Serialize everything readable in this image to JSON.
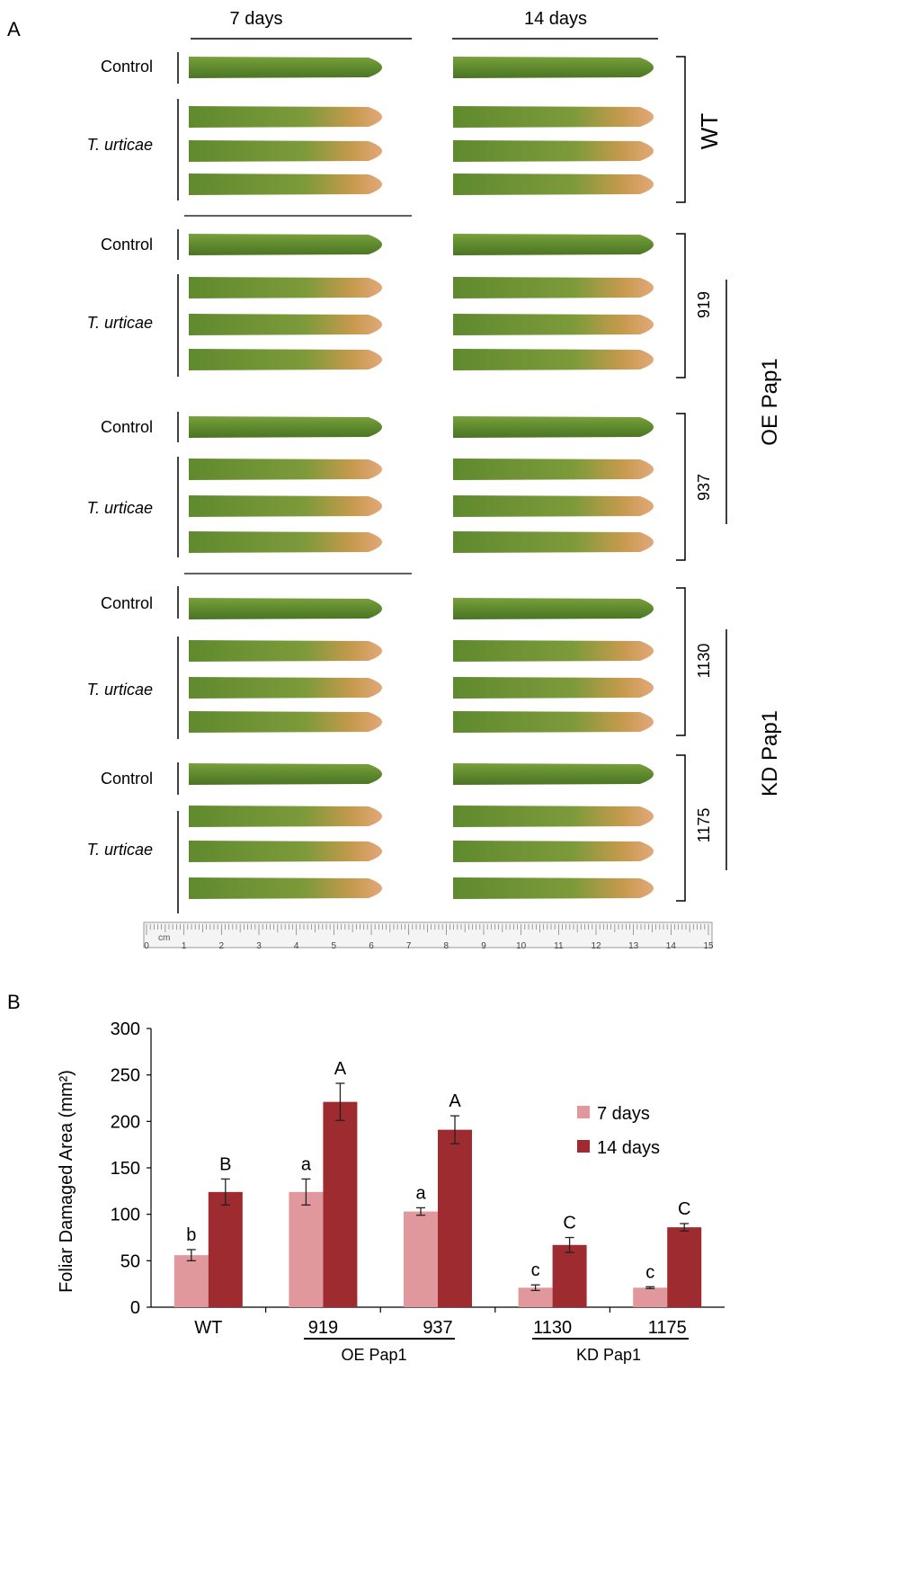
{
  "panel_a": {
    "panel_label": "A",
    "col_headers": [
      "7 days",
      "14 days"
    ],
    "row_labels": {
      "control": "Control",
      "treated": "T. urticae"
    },
    "genotypes": [
      {
        "id": "wt",
        "name": "WT"
      },
      {
        "id": "919",
        "name": "919"
      },
      {
        "id": "937",
        "name": "937"
      },
      {
        "id": "1130",
        "name": "1130"
      },
      {
        "id": "1175",
        "name": "1175"
      }
    ],
    "groups": {
      "oe": "OE Pap1",
      "kd": "KD Pap1"
    },
    "ruler": {
      "unit": "cm",
      "ticks": [
        "0",
        "1",
        "2",
        "3",
        "4",
        "5",
        "6",
        "7",
        "8",
        "9",
        "10",
        "11",
        "12",
        "13",
        "14",
        "15"
      ]
    },
    "colors": {
      "leaf_green": "#5f8a2e",
      "leaf_light": "#8aab4a",
      "damage": "#d79a5a"
    }
  },
  "panel_b": {
    "panel_label": "B",
    "chart_data": {
      "type": "bar",
      "title": "",
      "ylabel": "Foliar Damaged Area (mm²)",
      "xlabel": "",
      "ylim": [
        0,
        300
      ],
      "yticks": [
        "0",
        "50",
        "100",
        "150",
        "200",
        "250",
        "300"
      ],
      "categories": [
        "WT",
        "919",
        "937",
        "1130",
        "1175"
      ],
      "category_groups": [
        {
          "label": "OE Pap1",
          "categories": [
            "919",
            "937"
          ]
        },
        {
          "label": "KD Pap1",
          "categories": [
            "1130",
            "1175"
          ]
        }
      ],
      "series": [
        {
          "name": "7 days",
          "color": "#e0989c",
          "values": [
            56,
            124,
            103,
            21,
            21
          ],
          "errors": [
            6,
            14,
            4,
            3,
            1
          ],
          "letters": [
            "b",
            "a",
            "a",
            "c",
            "c"
          ]
        },
        {
          "name": "14 days",
          "color": "#9e2b2f",
          "values": [
            124,
            221,
            191,
            67,
            86
          ],
          "errors": [
            14,
            20,
            15,
            8,
            4
          ],
          "letters": [
            "B",
            "A",
            "A",
            "C",
            "C"
          ]
        }
      ],
      "legend_position": "top-right"
    }
  }
}
